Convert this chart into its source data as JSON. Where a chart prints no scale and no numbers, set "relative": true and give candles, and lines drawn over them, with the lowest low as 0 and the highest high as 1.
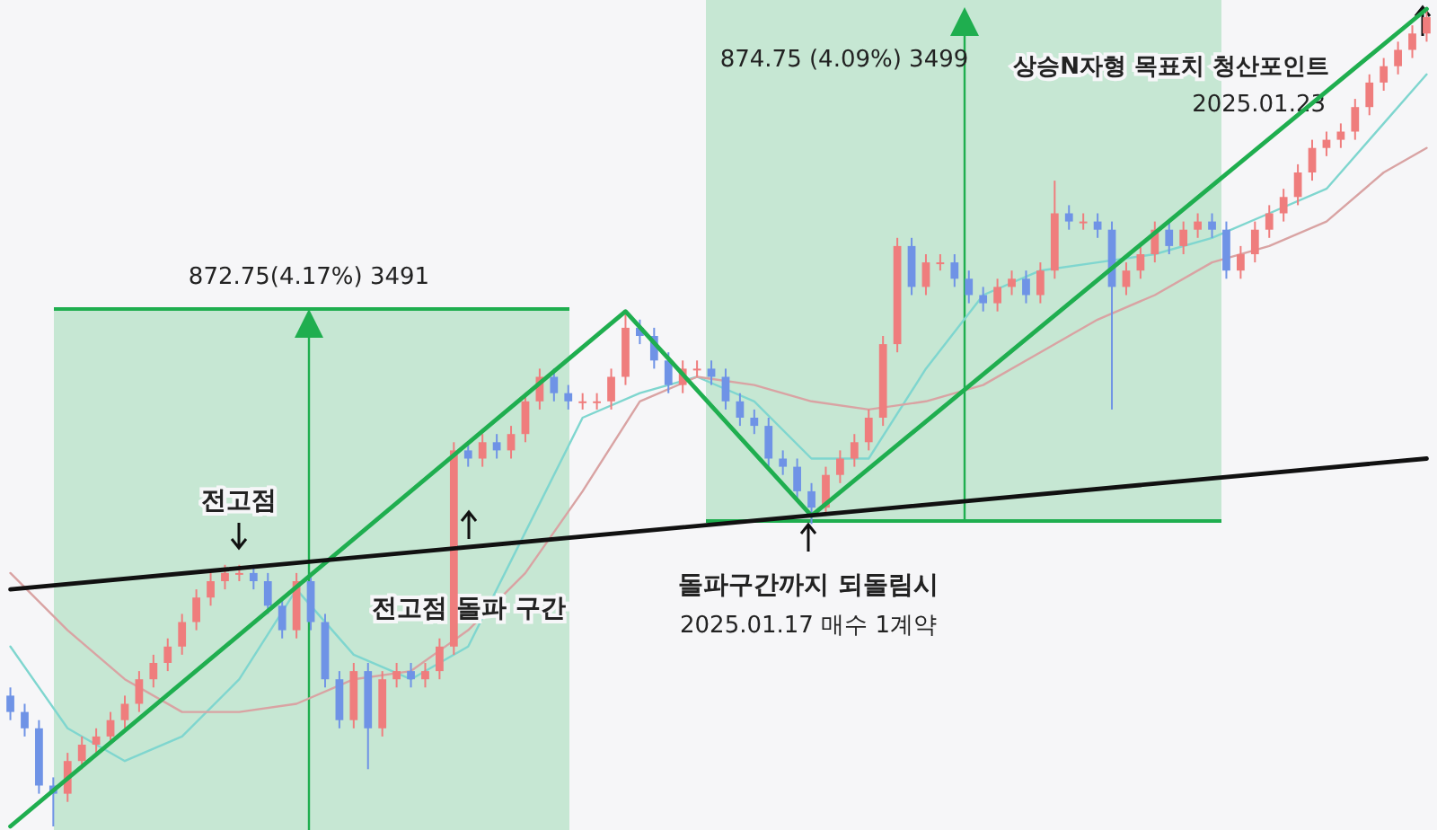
{
  "chart_data": {
    "type": "candlestick",
    "relative": true,
    "categories": [
      null,
      null,
      null,
      null,
      null,
      null,
      null,
      null,
      null,
      null,
      null,
      null,
      null,
      null,
      null,
      null,
      null,
      null,
      null,
      null,
      null,
      null,
      null,
      null,
      null,
      null,
      null,
      null,
      null,
      null,
      null,
      null,
      null,
      null,
      null,
      null,
      null,
      null,
      null,
      null,
      null,
      null,
      null,
      null,
      null,
      null,
      null,
      null,
      null,
      null,
      null,
      null,
      null,
      null,
      null,
      null,
      null,
      null,
      null,
      null,
      null,
      null,
      null,
      null,
      null,
      null,
      null,
      null,
      null,
      null,
      null,
      null,
      null,
      null,
      null,
      null,
      null,
      null,
      null,
      null,
      null,
      null,
      null,
      null,
      null,
      null,
      null,
      null,
      null,
      null,
      null,
      null,
      null,
      null,
      null,
      null,
      null,
      null,
      null,
      null
    ],
    "ohlc": [
      [
        0.16,
        0.17,
        0.13,
        0.14
      ],
      [
        0.14,
        0.15,
        0.11,
        0.12
      ],
      [
        0.12,
        0.13,
        0.04,
        0.05
      ],
      [
        0.05,
        0.06,
        0.0,
        0.04
      ],
      [
        0.04,
        0.09,
        0.03,
        0.08
      ],
      [
        0.08,
        0.11,
        0.07,
        0.1
      ],
      [
        0.1,
        0.12,
        0.09,
        0.11
      ],
      [
        0.11,
        0.14,
        0.1,
        0.13
      ],
      [
        0.13,
        0.16,
        0.12,
        0.15
      ],
      [
        0.15,
        0.19,
        0.14,
        0.18
      ],
      [
        0.18,
        0.21,
        0.17,
        0.2
      ],
      [
        0.2,
        0.23,
        0.19,
        0.22
      ],
      [
        0.22,
        0.26,
        0.21,
        0.25
      ],
      [
        0.25,
        0.29,
        0.24,
        0.28
      ],
      [
        0.28,
        0.31,
        0.27,
        0.3
      ],
      [
        0.3,
        0.32,
        0.29,
        0.31
      ],
      [
        0.31,
        0.32,
        0.3,
        0.31
      ],
      [
        0.31,
        0.32,
        0.29,
        0.3
      ],
      [
        0.3,
        0.31,
        0.26,
        0.27
      ],
      [
        0.27,
        0.28,
        0.23,
        0.24
      ],
      [
        0.24,
        0.31,
        0.23,
        0.3
      ],
      [
        0.3,
        0.31,
        0.24,
        0.25
      ],
      [
        0.25,
        0.26,
        0.17,
        0.18
      ],
      [
        0.18,
        0.19,
        0.12,
        0.13
      ],
      [
        0.13,
        0.2,
        0.12,
        0.19
      ],
      [
        0.19,
        0.2,
        0.07,
        0.12
      ],
      [
        0.12,
        0.19,
        0.11,
        0.18
      ],
      [
        0.18,
        0.2,
        0.17,
        0.19
      ],
      [
        0.19,
        0.2,
        0.17,
        0.18
      ],
      [
        0.18,
        0.2,
        0.17,
        0.19
      ],
      [
        0.19,
        0.23,
        0.18,
        0.22
      ],
      [
        0.22,
        0.47,
        0.21,
        0.46
      ],
      [
        0.46,
        0.47,
        0.44,
        0.45
      ],
      [
        0.45,
        0.48,
        0.44,
        0.47
      ],
      [
        0.47,
        0.48,
        0.45,
        0.46
      ],
      [
        0.46,
        0.49,
        0.45,
        0.48
      ],
      [
        0.48,
        0.53,
        0.47,
        0.52
      ],
      [
        0.52,
        0.56,
        0.51,
        0.55
      ],
      [
        0.55,
        0.56,
        0.52,
        0.53
      ],
      [
        0.53,
        0.54,
        0.51,
        0.52
      ],
      [
        0.52,
        0.53,
        0.51,
        0.52
      ],
      [
        0.52,
        0.53,
        0.51,
        0.52
      ],
      [
        0.52,
        0.56,
        0.51,
        0.55
      ],
      [
        0.55,
        0.63,
        0.54,
        0.61
      ],
      [
        0.61,
        0.62,
        0.59,
        0.6
      ],
      [
        0.6,
        0.61,
        0.56,
        0.57
      ],
      [
        0.57,
        0.58,
        0.53,
        0.54
      ],
      [
        0.54,
        0.57,
        0.53,
        0.56
      ],
      [
        0.56,
        0.57,
        0.55,
        0.56
      ],
      [
        0.56,
        0.57,
        0.54,
        0.55
      ],
      [
        0.55,
        0.56,
        0.51,
        0.52
      ],
      [
        0.52,
        0.53,
        0.49,
        0.5
      ],
      [
        0.5,
        0.51,
        0.48,
        0.49
      ],
      [
        0.49,
        0.5,
        0.44,
        0.45
      ],
      [
        0.45,
        0.46,
        0.43,
        0.44
      ],
      [
        0.44,
        0.45,
        0.4,
        0.41
      ],
      [
        0.41,
        0.42,
        0.37,
        0.39
      ],
      [
        0.39,
        0.44,
        0.38,
        0.43
      ],
      [
        0.43,
        0.46,
        0.42,
        0.45
      ],
      [
        0.45,
        0.48,
        0.44,
        0.47
      ],
      [
        0.47,
        0.51,
        0.46,
        0.5
      ],
      [
        0.5,
        0.6,
        0.49,
        0.59
      ],
      [
        0.59,
        0.72,
        0.58,
        0.71
      ],
      [
        0.71,
        0.72,
        0.65,
        0.66
      ],
      [
        0.66,
        0.7,
        0.65,
        0.69
      ],
      [
        0.69,
        0.7,
        0.68,
        0.69
      ],
      [
        0.69,
        0.7,
        0.66,
        0.67
      ],
      [
        0.67,
        0.68,
        0.64,
        0.65
      ],
      [
        0.65,
        0.66,
        0.63,
        0.64
      ],
      [
        0.64,
        0.67,
        0.63,
        0.66
      ],
      [
        0.66,
        0.68,
        0.65,
        0.67
      ],
      [
        0.67,
        0.68,
        0.64,
        0.65
      ],
      [
        0.65,
        0.69,
        0.64,
        0.68
      ],
      [
        0.68,
        0.79,
        0.67,
        0.75
      ],
      [
        0.75,
        0.76,
        0.73,
        0.74
      ],
      [
        0.74,
        0.75,
        0.73,
        0.74
      ],
      [
        0.74,
        0.75,
        0.72,
        0.73
      ],
      [
        0.73,
        0.74,
        0.51,
        0.66
      ],
      [
        0.66,
        0.69,
        0.65,
        0.68
      ],
      [
        0.68,
        0.71,
        0.67,
        0.7
      ],
      [
        0.7,
        0.74,
        0.69,
        0.73
      ],
      [
        0.73,
        0.74,
        0.7,
        0.71
      ],
      [
        0.71,
        0.74,
        0.7,
        0.73
      ],
      [
        0.73,
        0.75,
        0.72,
        0.74
      ],
      [
        0.74,
        0.75,
        0.72,
        0.73
      ],
      [
        0.73,
        0.74,
        0.67,
        0.68
      ],
      [
        0.68,
        0.71,
        0.67,
        0.7
      ],
      [
        0.7,
        0.74,
        0.69,
        0.73
      ],
      [
        0.73,
        0.76,
        0.72,
        0.75
      ],
      [
        0.75,
        0.78,
        0.74,
        0.77
      ],
      [
        0.77,
        0.81,
        0.76,
        0.8
      ],
      [
        0.8,
        0.84,
        0.79,
        0.83
      ],
      [
        0.83,
        0.85,
        0.82,
        0.84
      ],
      [
        0.84,
        0.86,
        0.83,
        0.85
      ],
      [
        0.85,
        0.89,
        0.84,
        0.88
      ],
      [
        0.88,
        0.92,
        0.87,
        0.91
      ],
      [
        0.91,
        0.94,
        0.9,
        0.93
      ],
      [
        0.93,
        0.96,
        0.92,
        0.95
      ],
      [
        0.95,
        0.98,
        0.94,
        0.97
      ],
      [
        0.97,
        1.0,
        0.96,
        0.99
      ]
    ],
    "series": [
      {
        "type": "line",
        "color": "#7fd6cf",
        "values": [
          0.22,
          null,
          null,
          null,
          0.12,
          null,
          null,
          null,
          0.08,
          null,
          null,
          null,
          0.11,
          null,
          null,
          null,
          0.18,
          null,
          null,
          null,
          0.29,
          null,
          null,
          null,
          0.21,
          null,
          null,
          null,
          0.18,
          null,
          null,
          null,
          0.22,
          null,
          null,
          null,
          0.36,
          null,
          null,
          null,
          0.5,
          null,
          null,
          null,
          0.53,
          null,
          null,
          null,
          0.55,
          null,
          null,
          null,
          0.52,
          null,
          null,
          null,
          0.45,
          null,
          null,
          null,
          0.45,
          null,
          null,
          null,
          0.56,
          null,
          null,
          null,
          0.65,
          null,
          null,
          null,
          0.68,
          null,
          null,
          null,
          0.69,
          null,
          null,
          null,
          0.7,
          null,
          null,
          null,
          0.72,
          null,
          null,
          null,
          0.75,
          null,
          null,
          null,
          0.78,
          null,
          null,
          null,
          0.86,
          null,
          null,
          0.92
        ]
      },
      {
        "type": "line",
        "color": "#d9a3a3",
        "values": [
          0.31,
          null,
          null,
          null,
          0.24,
          null,
          null,
          null,
          0.18,
          null,
          null,
          null,
          0.14,
          null,
          null,
          null,
          0.14,
          null,
          null,
          null,
          0.15,
          null,
          null,
          null,
          0.18,
          null,
          null,
          null,
          0.19,
          null,
          null,
          null,
          0.24,
          null,
          null,
          null,
          0.31,
          null,
          null,
          null,
          0.41,
          null,
          null,
          null,
          0.52,
          null,
          null,
          null,
          0.55,
          null,
          null,
          null,
          0.54,
          null,
          null,
          null,
          0.52,
          null,
          null,
          null,
          0.51,
          null,
          null,
          null,
          0.52,
          null,
          null,
          null,
          0.54,
          null,
          null,
          null,
          0.58,
          null,
          null,
          null,
          0.62,
          null,
          null,
          null,
          0.65,
          null,
          null,
          null,
          0.69,
          null,
          null,
          null,
          0.71,
          null,
          null,
          null,
          0.74,
          null,
          null,
          null,
          0.8,
          null,
          null,
          0.83
        ]
      },
      {
        "type": "line",
        "color": "#1fae4f",
        "values": [
          0,
          null,
          null,
          null,
          null,
          null,
          null,
          null,
          null,
          null,
          null,
          null,
          null,
          null,
          null,
          null,
          null,
          null,
          null,
          null,
          null,
          null,
          null,
          null,
          null,
          null,
          null,
          null,
          null,
          null,
          null,
          null,
          null,
          null,
          null,
          null,
          null,
          null,
          null,
          null,
          null,
          null,
          null,
          0.63,
          null,
          null,
          null,
          null,
          null,
          null,
          null,
          null,
          null,
          null,
          null,
          null,
          0.38,
          null,
          null,
          null,
          null,
          null,
          null,
          null,
          null,
          null,
          null,
          null,
          null,
          null,
          null,
          null,
          null,
          null,
          null,
          null,
          null,
          null,
          null,
          null,
          null,
          null,
          null,
          null,
          null,
          null,
          null,
          null,
          null,
          null,
          null,
          null,
          null,
          null,
          null,
          null,
          null,
          null,
          null,
          1.0
        ]
      },
      {
        "type": "line",
        "color": "#111111",
        "values": [
          0.29,
          null,
          null,
          null,
          null,
          null,
          null,
          null,
          null,
          null,
          null,
          null,
          null,
          null,
          null,
          null,
          null,
          null,
          null,
          null,
          null,
          null,
          null,
          null,
          null,
          null,
          null,
          null,
          null,
          null,
          null,
          null,
          null,
          null,
          null,
          null,
          null,
          null,
          null,
          null,
          null,
          null,
          null,
          null,
          null,
          null,
          null,
          null,
          null,
          null,
          null,
          null,
          null,
          null,
          null,
          null,
          null,
          null,
          null,
          null,
          null,
          null,
          null,
          null,
          null,
          null,
          null,
          null,
          null,
          null,
          null,
          null,
          null,
          null,
          null,
          null,
          null,
          null,
          null,
          null,
          null,
          null,
          null,
          null,
          null,
          null,
          null,
          null,
          null,
          null,
          null,
          null,
          null,
          null,
          null,
          null,
          null,
          null,
          null,
          0.45
        ]
      }
    ],
    "annotations": [
      "전고점",
      "전고점 돌파 구간",
      "돌파구간까지 되돌림시",
      "2025.01.17 매수 1계약",
      "상승N자형 목표치 청산포인트",
      "2025.01.23",
      "872.75(4.17%) 3491",
      "874.75 (4.09%) 3499"
    ]
  }
}
